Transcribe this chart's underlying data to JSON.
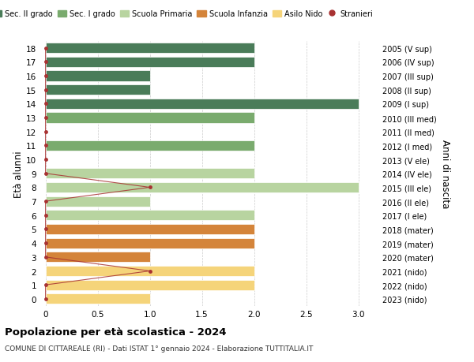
{
  "ages": [
    18,
    17,
    16,
    15,
    14,
    13,
    12,
    11,
    10,
    9,
    8,
    7,
    6,
    5,
    4,
    3,
    2,
    1,
    0
  ],
  "years_labels": [
    "2005 (V sup)",
    "2006 (IV sup)",
    "2007 (III sup)",
    "2008 (II sup)",
    "2009 (I sup)",
    "2010 (III med)",
    "2011 (II med)",
    "2012 (I med)",
    "2013 (V ele)",
    "2014 (IV ele)",
    "2015 (III ele)",
    "2016 (II ele)",
    "2017 (I ele)",
    "2018 (mater)",
    "2019 (mater)",
    "2020 (mater)",
    "2021 (nido)",
    "2022 (nido)",
    "2023 (nido)"
  ],
  "bar_values": [
    2,
    2,
    1,
    1,
    3,
    2,
    0,
    2,
    0,
    2,
    3,
    1,
    2,
    2,
    2,
    1,
    2,
    2,
    1
  ],
  "stranieri_values": [
    0,
    0,
    0,
    0,
    0,
    0,
    0,
    0,
    0,
    0,
    1,
    0,
    0,
    0,
    0,
    0,
    1,
    0,
    0
  ],
  "bar_colors": [
    "#4a7c59",
    "#4a7c59",
    "#4a7c59",
    "#4a7c59",
    "#4a7c59",
    "#7aab6e",
    "#7aab6e",
    "#7aab6e",
    "#b8d4a0",
    "#b8d4a0",
    "#b8d4a0",
    "#b8d4a0",
    "#b8d4a0",
    "#d4843a",
    "#d4843a",
    "#d4843a",
    "#f5d47a",
    "#f5d47a",
    "#f5d47a"
  ],
  "legend_labels": [
    "Sec. II grado",
    "Sec. I grado",
    "Scuola Primaria",
    "Scuola Infanzia",
    "Asilo Nido",
    "Stranieri"
  ],
  "legend_colors": [
    "#4a7c59",
    "#7aab6e",
    "#b8d4a0",
    "#d4843a",
    "#f5d47a",
    "#a83232"
  ],
  "stranieri_color": "#a83232",
  "xlim": [
    -0.05,
    3.2
  ],
  "ylim": [
    -0.5,
    18.5
  ],
  "ylabel_left": "Età alunni",
  "ylabel_right": "Anni di nascita",
  "title": "Popolazione per età scolastica - 2024",
  "subtitle": "COMUNE DI CITTAREALE (RI) - Dati ISTAT 1° gennaio 2024 - Elaborazione TUTTITALIA.IT",
  "xticks": [
    0,
    0.5,
    1.0,
    1.5,
    2.0,
    2.5,
    3.0
  ],
  "bar_height": 0.75,
  "background_color": "#ffffff",
  "grid_color": "#cccccc"
}
